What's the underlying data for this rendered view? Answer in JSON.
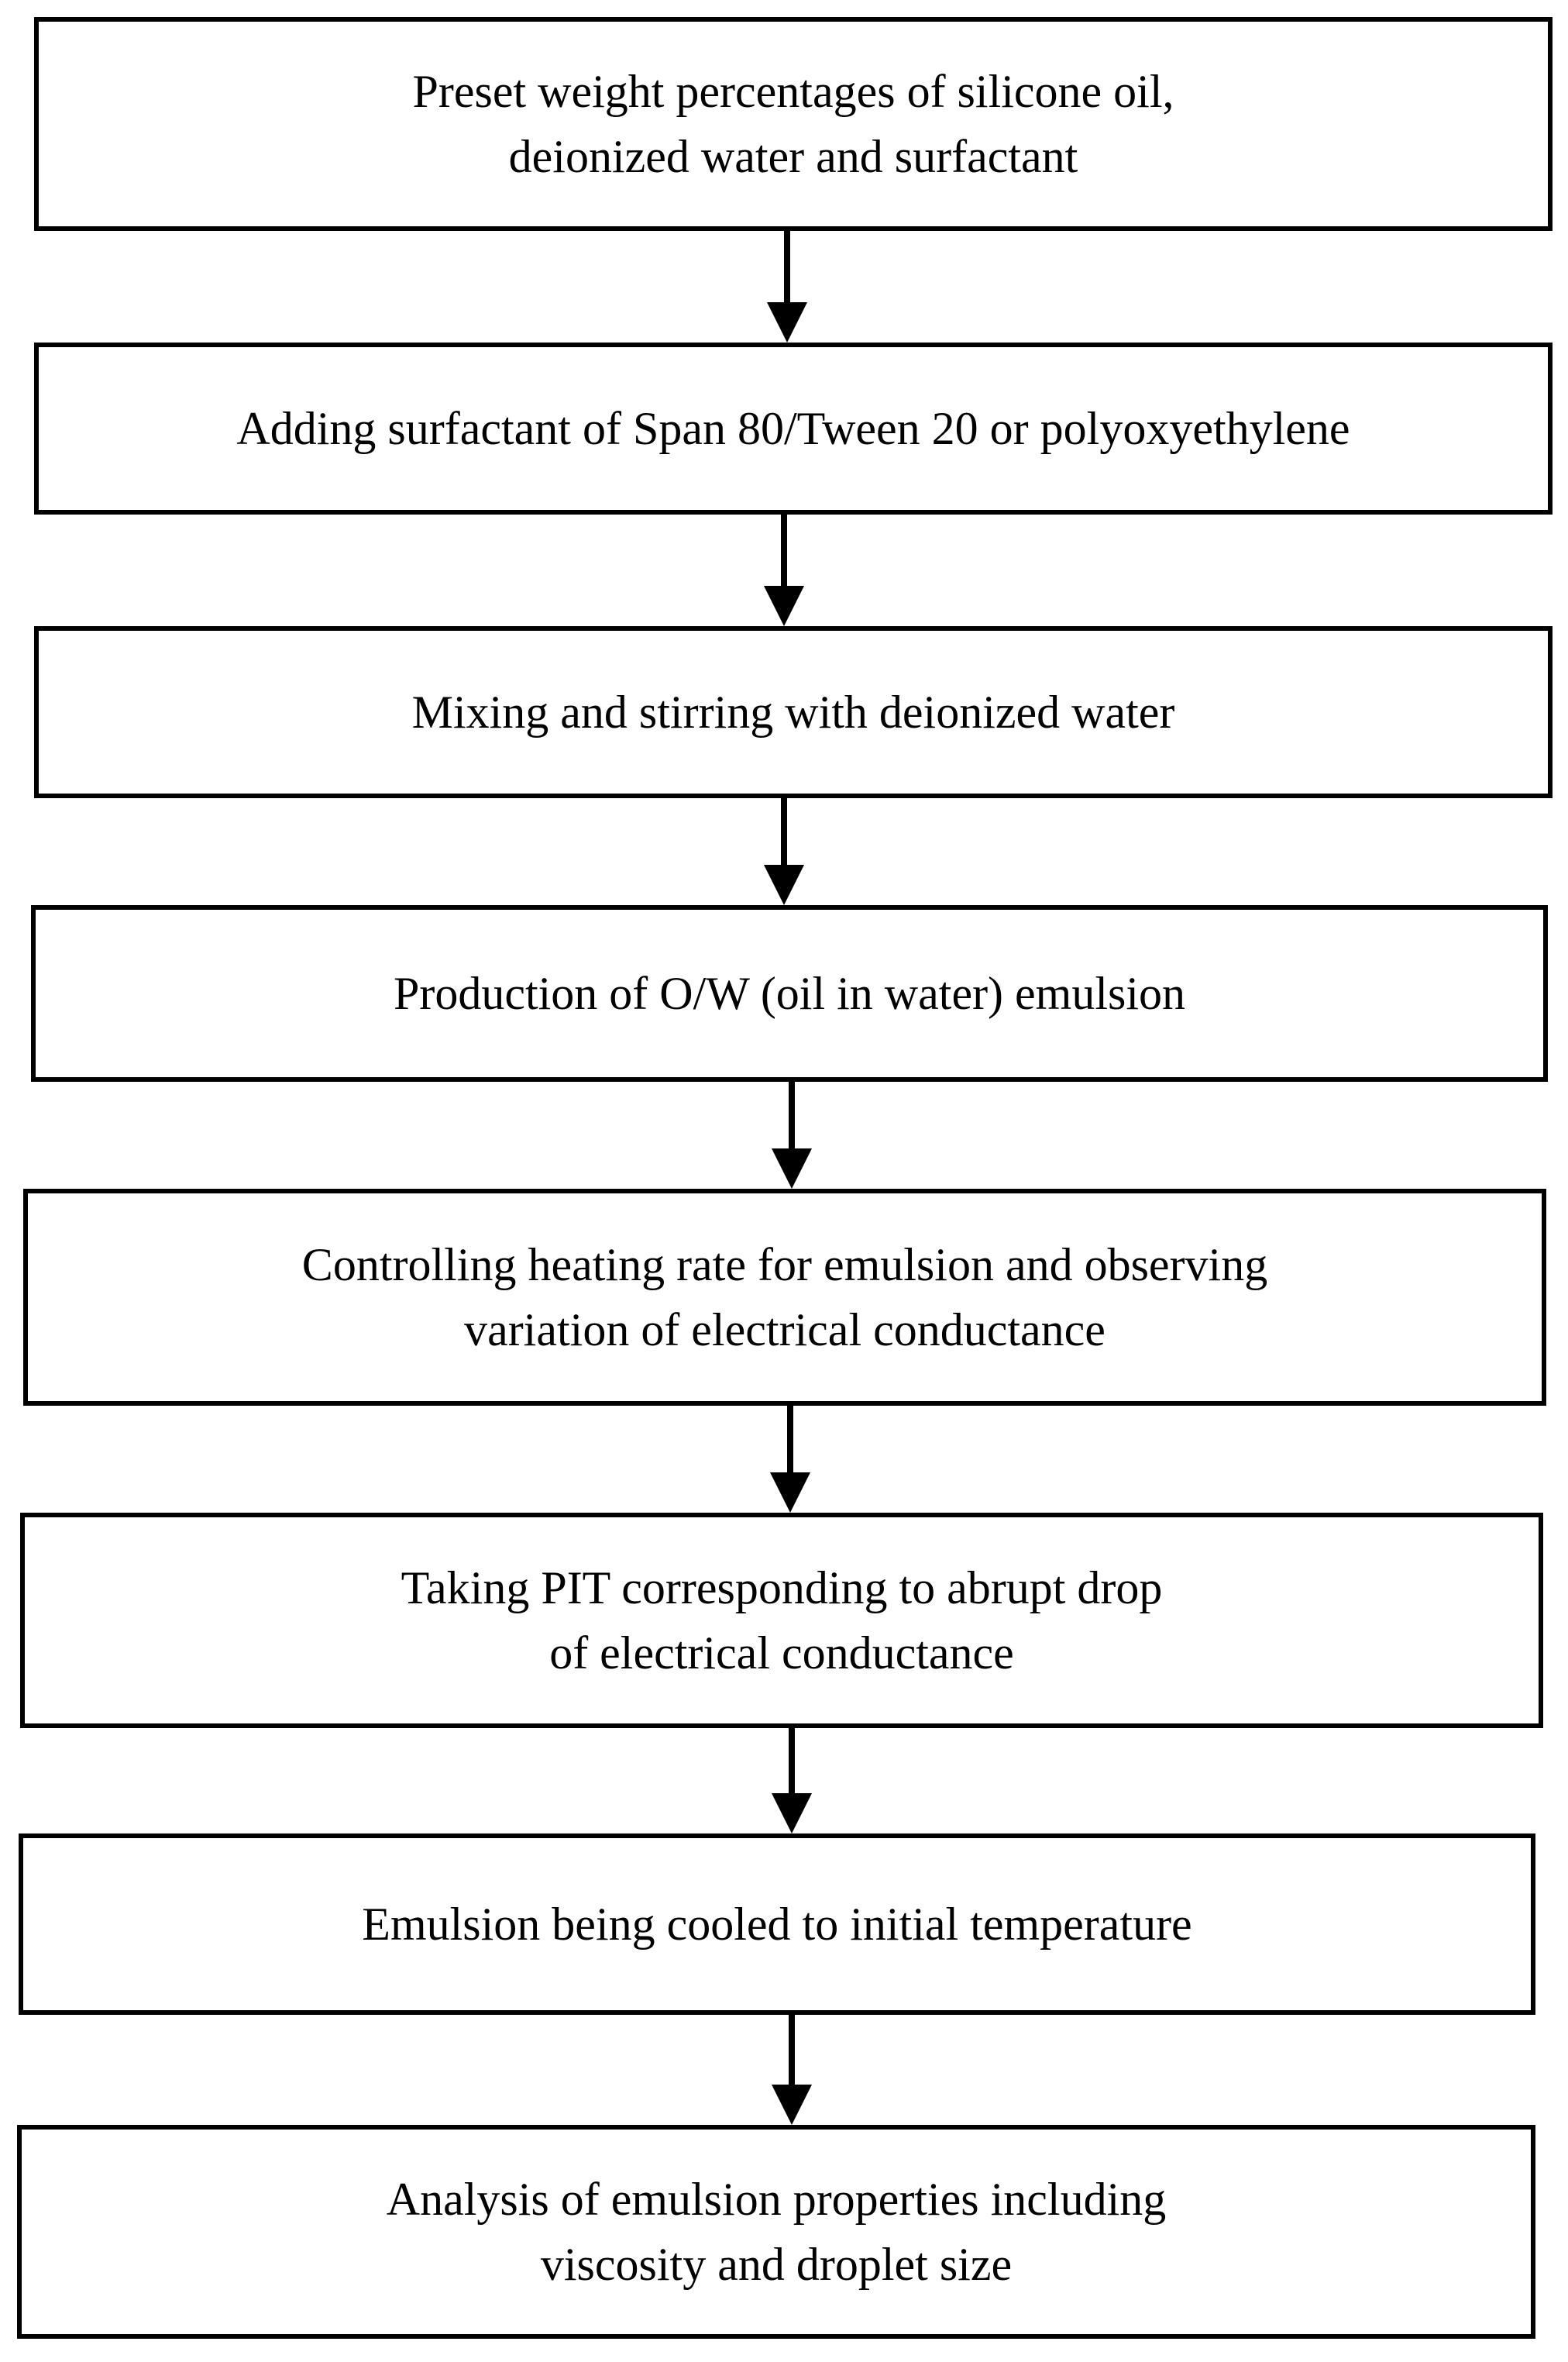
{
  "flowchart": {
    "steps": [
      {
        "lines": [
          "Preset weight percentages of silicone oil,",
          "deionized water and surfactant"
        ]
      },
      {
        "lines": [
          "Adding surfactant of Span 80/Tween 20 or polyoxyethylene"
        ]
      },
      {
        "lines": [
          "Mixing and stirring with deionized water"
        ]
      },
      {
        "lines": [
          "Production of O/W (oil in water) emulsion"
        ]
      },
      {
        "lines": [
          "Controlling heating rate for emulsion and observing",
          "variation of electrical conductance"
        ]
      },
      {
        "lines": [
          "Taking PIT corresponding to abrupt drop",
          "of electrical conductance"
        ]
      },
      {
        "lines": [
          "Emulsion being cooled to initial temperature"
        ]
      },
      {
        "lines": [
          "Analysis of emulsion properties including",
          "viscosity and droplet size"
        ]
      }
    ]
  }
}
